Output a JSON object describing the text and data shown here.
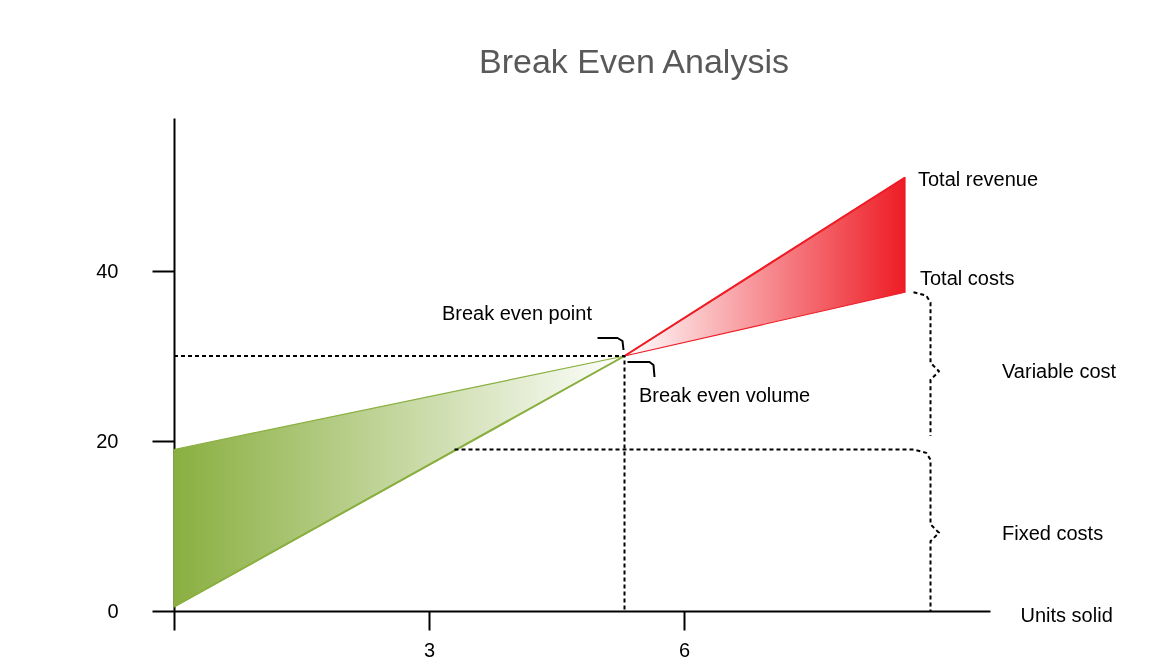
{
  "chart_data": {
    "type": "line",
    "title": "Break Even Analysis",
    "xlabel": "Units solid",
    "series": [
      {
        "color": "#8aaf40",
        "x": [
          0,
          5.3
        ],
        "values": [
          0.5,
          30
        ],
        "lower": [
          0.5,
          30
        ],
        "upper": [
          19,
          30
        ]
      },
      {
        "color": "#ee1c25",
        "x": [
          5.3,
          8.6
        ],
        "values": [
          30,
          51
        ],
        "lower": [
          30,
          37.5
        ],
        "upper": [
          30,
          51
        ]
      },
      {
        "color": "#000000",
        "line_style": "dashed",
        "x": [
          0,
          5.3,
          5.3
        ],
        "values": [
          30,
          30,
          0
        ]
      },
      {
        "color": "#000000",
        "line_style": "dashed",
        "x": [
          3.3,
          8.7,
          8.85,
          8.9,
          8.9,
          9.0,
          8.9,
          8.9
        ],
        "values": [
          19,
          19,
          18.6,
          17.8,
          10.2,
          9.2,
          8.2,
          0
        ]
      },
      {
        "color": "#000000",
        "line_style": "dashed",
        "x": [
          8.7,
          8.85,
          8.9,
          8.9,
          9.0,
          8.9,
          8.9
        ],
        "values": [
          37.5,
          37.1,
          36.3,
          29.2,
          28.2,
          27.2,
          20.6
        ]
      }
    ],
    "annotations": [
      "Break even point",
      "Break even volume",
      "Total revenue",
      "Total costs",
      "Variable cost",
      "Fixed costs"
    ],
    "xlim": [
      0,
      9.6
    ],
    "ylim": [
      0,
      58
    ],
    "xticks": [
      {
        "value": 0,
        "label": null
      },
      3,
      6
    ],
    "yticks": [
      0,
      20,
      40
    ]
  }
}
